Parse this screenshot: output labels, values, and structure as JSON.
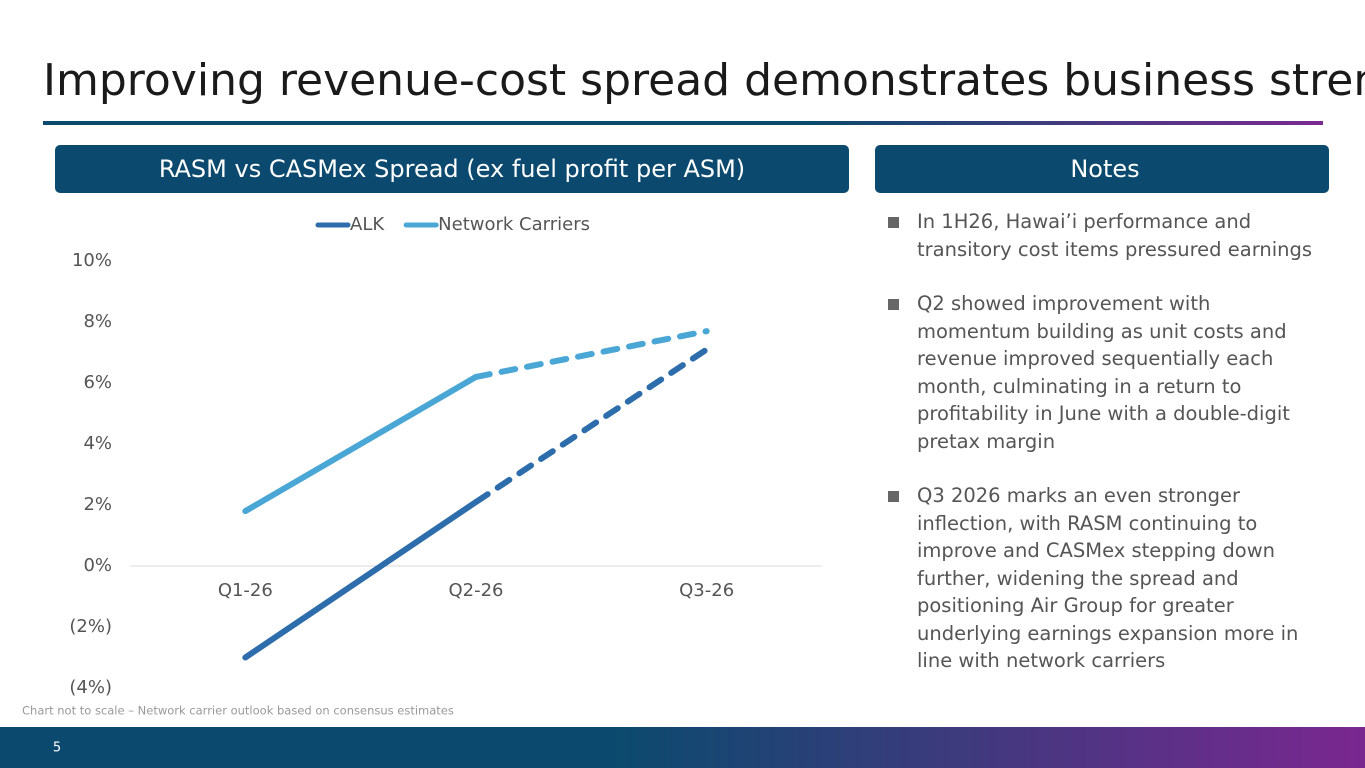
{
  "title": "Improving revenue-cost spread demonstrates business strength",
  "chart_panel": {
    "header": "RASM vs CASMex Spread (ex fuel profit per ASM)"
  },
  "notes_panel": {
    "header": "Notes",
    "items": [
      "In 1H26, Hawai’i performance and transitory cost items pressured earnings",
      "Q2 showed improvement with momentum building as unit costs and revenue improved sequentially each month, culminating in a return to profitability in June with a double-digit pretax margin",
      "Q3 2026 marks an even stronger inflection, with RASM continuing to improve and CASMex stepping down further, widening the spread and positioning Air Group for greater underlying earnings expansion more in line with network carriers"
    ]
  },
  "footnote": "Chart not to scale – Network carrier outlook based on consensus estimates",
  "page_number": "5",
  "chart_data": {
    "type": "line",
    "categories": [
      "Q1-26",
      "Q2-26",
      "Q3-26"
    ],
    "series": [
      {
        "name": "ALK",
        "color": "#2e6dab",
        "values": [
          -3,
          2.1,
          7.1
        ],
        "dashed_from_index": 1
      },
      {
        "name": "Network Carriers",
        "color": "#4aa7d5",
        "values": [
          1.8,
          6.2,
          7.7
        ],
        "dashed_from_index": 1
      }
    ],
    "ylim": [
      -4,
      10
    ],
    "yticks": [
      {
        "value": -4,
        "label": "(4%)"
      },
      {
        "value": -2,
        "label": "(2%)"
      },
      {
        "value": 0,
        "label": "0%"
      },
      {
        "value": 2,
        "label": "2%"
      },
      {
        "value": 4,
        "label": "4%"
      },
      {
        "value": 6,
        "label": "6%"
      },
      {
        "value": 8,
        "label": "8%"
      },
      {
        "value": 10,
        "label": "10%"
      }
    ],
    "legend": "top"
  }
}
